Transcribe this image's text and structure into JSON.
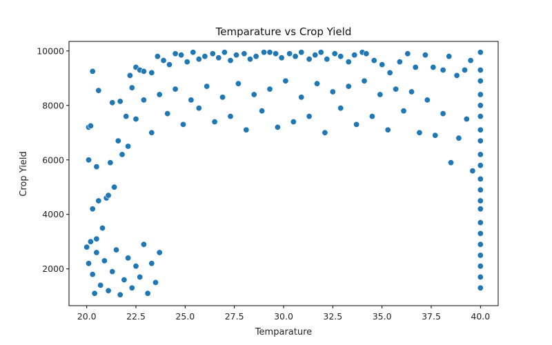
{
  "chart_data": {
    "type": "scatter",
    "title": "Temparature vs Crop Yield",
    "xlabel": "Temparature",
    "ylabel": "Crop Yield",
    "xlim": [
      19.1,
      40.9
    ],
    "ylim": [
      650,
      10350
    ],
    "x_ticks": [
      20.0,
      22.5,
      25.0,
      27.5,
      30.0,
      32.5,
      35.0,
      37.5,
      40.0
    ],
    "x_tick_labels": [
      "20.0",
      "22.5",
      "25.0",
      "27.5",
      "30.0",
      "32.5",
      "35.0",
      "37.5",
      "40.0"
    ],
    "y_ticks": [
      2000,
      4000,
      6000,
      8000,
      10000
    ],
    "y_tick_labels": [
      "2000",
      "4000",
      "6000",
      "8000",
      "10000"
    ],
    "grid": false,
    "legend": "none",
    "marker_color": "#1f77b4",
    "marker_edge_color": "#ffffff",
    "points": [
      [
        20.0,
        2800
      ],
      [
        20.1,
        6000
      ],
      [
        20.1,
        7200
      ],
      [
        20.2,
        7250
      ],
      [
        20.3,
        9250
      ],
      [
        20.3,
        4200
      ],
      [
        20.4,
        1100
      ],
      [
        20.5,
        5750
      ],
      [
        20.6,
        8550
      ],
      [
        20.6,
        4500
      ],
      [
        21.0,
        4600
      ],
      [
        21.2,
        5900
      ],
      [
        21.3,
        8100
      ],
      [
        21.6,
        6700
      ],
      [
        21.7,
        8150
      ],
      [
        22.0,
        7600
      ],
      [
        22.2,
        9100
      ],
      [
        22.3,
        8650
      ],
      [
        22.5,
        9400
      ],
      [
        22.7,
        9300
      ],
      [
        22.9,
        9250
      ],
      [
        23.3,
        9200
      ],
      [
        23.6,
        9800
      ],
      [
        23.9,
        9650
      ],
      [
        24.2,
        9500
      ],
      [
        24.5,
        9900
      ],
      [
        24.8,
        9850
      ],
      [
        25.1,
        9600
      ],
      [
        25.4,
        9950
      ],
      [
        25.7,
        9700
      ],
      [
        26.0,
        9800
      ],
      [
        26.4,
        9900
      ],
      [
        26.7,
        9750
      ],
      [
        27.0,
        9950
      ],
      [
        27.3,
        9650
      ],
      [
        27.6,
        9850
      ],
      [
        28.0,
        9900
      ],
      [
        28.3,
        9700
      ],
      [
        28.6,
        9800
      ],
      [
        29.0,
        9950
      ],
      [
        29.3,
        9950
      ],
      [
        29.6,
        9900
      ],
      [
        29.9,
        9750
      ],
      [
        30.3,
        9900
      ],
      [
        30.6,
        9800
      ],
      [
        30.9,
        9950
      ],
      [
        31.3,
        9700
      ],
      [
        31.6,
        9850
      ],
      [
        31.9,
        9950
      ],
      [
        32.2,
        9700
      ],
      [
        32.6,
        9900
      ],
      [
        32.9,
        9800
      ],
      [
        33.3,
        9600
      ],
      [
        33.6,
        9850
      ],
      [
        34.0,
        9950
      ],
      [
        34.2,
        9900
      ],
      [
        34.6,
        9650
      ],
      [
        35.0,
        9500
      ],
      [
        35.4,
        9200
      ],
      [
        35.9,
        9600
      ],
      [
        36.3,
        9900
      ],
      [
        36.7,
        9400
      ],
      [
        37.2,
        9850
      ],
      [
        37.6,
        9400
      ],
      [
        38.1,
        9300
      ],
      [
        38.4,
        9800
      ],
      [
        38.8,
        9100
      ],
      [
        39.2,
        9300
      ],
      [
        39.5,
        9650
      ],
      [
        40.0,
        9950
      ],
      [
        40.0,
        9300
      ],
      [
        40.0,
        8900
      ],
      [
        40.0,
        8400
      ],
      [
        40.0,
        8000
      ],
      [
        40.0,
        7600
      ],
      [
        40.0,
        7100
      ],
      [
        40.0,
        6700
      ],
      [
        40.0,
        6200
      ],
      [
        40.0,
        5800
      ],
      [
        40.0,
        5300
      ],
      [
        40.0,
        4900
      ],
      [
        40.0,
        4500
      ],
      [
        40.0,
        4200
      ],
      [
        40.0,
        3700
      ],
      [
        40.0,
        3300
      ],
      [
        40.0,
        2900
      ],
      [
        40.0,
        2500
      ],
      [
        40.0,
        2100
      ],
      [
        40.0,
        1700
      ],
      [
        40.0,
        1300
      ],
      [
        39.6,
        5600
      ],
      [
        39.3,
        7500
      ],
      [
        38.9,
        6800
      ],
      [
        38.5,
        5900
      ],
      [
        38.1,
        7700
      ],
      [
        37.7,
        6900
      ],
      [
        37.3,
        8200
      ],
      [
        36.9,
        7000
      ],
      [
        36.5,
        8500
      ],
      [
        36.1,
        7800
      ],
      [
        35.7,
        8600
      ],
      [
        35.3,
        7100
      ],
      [
        34.9,
        8400
      ],
      [
        34.5,
        7600
      ],
      [
        34.1,
        8900
      ],
      [
        33.7,
        7300
      ],
      [
        33.3,
        8700
      ],
      [
        32.9,
        7900
      ],
      [
        32.5,
        8500
      ],
      [
        32.1,
        7000
      ],
      [
        31.7,
        8800
      ],
      [
        31.3,
        7600
      ],
      [
        30.9,
        8300
      ],
      [
        30.5,
        7400
      ],
      [
        30.1,
        8900
      ],
      [
        29.7,
        7200
      ],
      [
        29.3,
        8600
      ],
      [
        28.9,
        7800
      ],
      [
        28.5,
        8400
      ],
      [
        28.1,
        7100
      ],
      [
        27.7,
        8800
      ],
      [
        27.3,
        7600
      ],
      [
        26.9,
        8300
      ],
      [
        26.5,
        7400
      ],
      [
        26.1,
        8700
      ],
      [
        25.7,
        7900
      ],
      [
        25.3,
        8200
      ],
      [
        24.9,
        7300
      ],
      [
        24.5,
        8600
      ],
      [
        24.1,
        7700
      ],
      [
        23.7,
        8400
      ],
      [
        23.3,
        7000
      ],
      [
        22.9,
        8200
      ],
      [
        22.5,
        7500
      ],
      [
        22.1,
        6500
      ],
      [
        21.8,
        6200
      ],
      [
        21.4,
        5000
      ],
      [
        21.1,
        4700
      ],
      [
        20.8,
        3500
      ],
      [
        20.5,
        3100
      ],
      [
        20.2,
        3000
      ],
      [
        20.1,
        2200
      ],
      [
        20.3,
        1800
      ],
      [
        20.5,
        2600
      ],
      [
        20.7,
        1400
      ],
      [
        20.9,
        2300
      ],
      [
        21.1,
        1200
      ],
      [
        21.3,
        1900
      ],
      [
        21.5,
        2700
      ],
      [
        21.7,
        1050
      ],
      [
        21.9,
        1600
      ],
      [
        22.1,
        2400
      ],
      [
        22.3,
        1300
      ],
      [
        22.5,
        2100
      ],
      [
        22.7,
        1700
      ],
      [
        22.9,
        2900
      ],
      [
        23.1,
        1100
      ],
      [
        23.3,
        2200
      ],
      [
        23.5,
        1500
      ],
      [
        23.7,
        2600
      ]
    ]
  }
}
